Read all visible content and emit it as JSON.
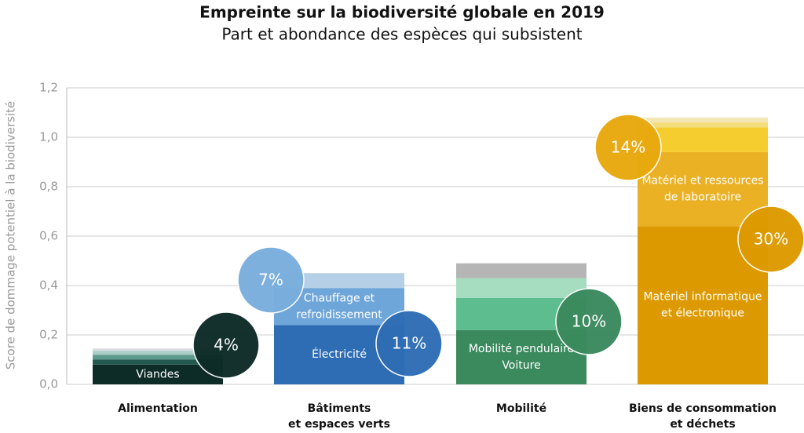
{
  "chart_data": {
    "type": "stacked-bar",
    "title": "Empreinte sur la biodiversité globale en 2019",
    "subtitle": "Part et abondance des espèces qui subsistent",
    "y_label": "Score de dommage potentiel à la biodiversité",
    "ylim": [
      0,
      1.2
    ],
    "yticks": [
      {
        "value": 0,
        "label": "0,0"
      },
      {
        "value": 0.2,
        "label": "0,2"
      },
      {
        "value": 0.4,
        "label": "0,4"
      },
      {
        "value": 0.6,
        "label": "0,6"
      },
      {
        "value": 0.8,
        "label": "0,8"
      },
      {
        "value": 1.0,
        "label": "1,0"
      },
      {
        "value": 1.2,
        "label": "1,2"
      }
    ],
    "grid": true,
    "stacks": [
      {
        "category": [
          "Alimentation"
        ],
        "segments": [
          {
            "value": 0.08,
            "color": "#0d2b27",
            "label": [
              "Viandes"
            ]
          },
          {
            "value": 0.02,
            "color": "#245a50"
          },
          {
            "value": 0.02,
            "color": "#5f9a8e"
          },
          {
            "value": 0.015,
            "color": "#a9cfc6"
          },
          {
            "value": 0.01,
            "color": "#d6dcdf"
          }
        ],
        "badge": {
          "value": 4,
          "label": "4%",
          "color": "#0d2b27"
        }
      },
      {
        "category": [
          "Bâtiments",
          "et espaces verts"
        ],
        "segments": [
          {
            "value": 0.24,
            "color": "#2e6db4",
            "label": [
              "Électricité"
            ]
          },
          {
            "value": 0.15,
            "color": "#6fa6d9",
            "label": [
              "Chauffage et",
              "refroidissement"
            ]
          },
          {
            "value": 0.06,
            "color": "#b4cfe6"
          }
        ],
        "badge": {
          "value": 11,
          "label": "11%",
          "color": "#2e6db4"
        }
      },
      {
        "category": [
          "Mobilité"
        ],
        "segments": [
          {
            "value": 0.22,
            "color": "#3a8a5e",
            "label": [
              "Mobilité pendulaire",
              "Voiture"
            ]
          },
          {
            "value": 0.13,
            "color": "#5dbd8f"
          },
          {
            "value": 0.08,
            "color": "#a6dcc0"
          },
          {
            "value": 0.06,
            "color": "#b5b5b5"
          }
        ],
        "badge": {
          "value": 10,
          "label": "10%",
          "color": "#3a8a5e"
        }
      },
      {
        "category": [
          "Biens de consommation",
          "et déchets"
        ],
        "segments": [
          {
            "value": 0.64,
            "color": "#dd9a00",
            "label": [
              "Matériel informatique",
              "et électronique"
            ]
          },
          {
            "value": 0.3,
            "color": "#ebb125",
            "label": [
              "Matériel et ressources",
              "de laboratoire"
            ]
          },
          {
            "value": 0.1,
            "color": "#f5cd2e"
          },
          {
            "value": 0.02,
            "color": "#f2dc7a"
          },
          {
            "value": 0.02,
            "color": "#f5e7b3"
          }
        ],
        "badge": {
          "value": 30,
          "label": "30%",
          "color": "#dd9a00"
        }
      }
    ],
    "extra_badges": [
      {
        "value": 7,
        "label": "7%",
        "color": "#7aaedc"
      },
      {
        "value": 14,
        "label": "14%",
        "color": "#e8a90f"
      }
    ]
  }
}
